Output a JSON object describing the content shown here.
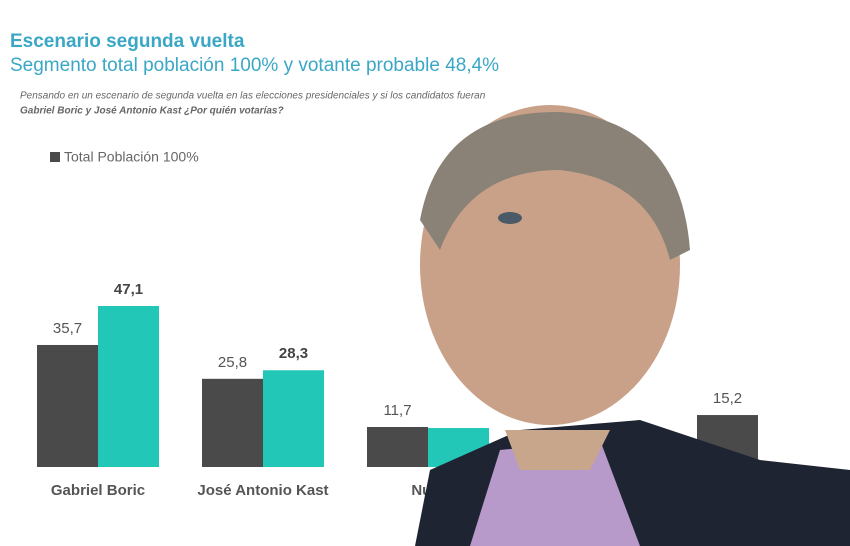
{
  "chart_data": {
    "type": "bar",
    "title": "Escenario segunda vuelta",
    "subtitle": "Segmento total población 100% y votante probable 48,4%",
    "note": [
      "Pensando en un escenario de segunda vuelta en las elecciones presidenciales y si los candidatos fueran",
      "Gabriel Boric y José Antonio Kast ¿Por quién votarías?"
    ],
    "categories": [
      "Gabriel Boric",
      "José Antonio Kast",
      "Nulo",
      null,
      null
    ],
    "series": [
      {
        "name": "Total Población 100%",
        "color": "#4a4a4a",
        "values": [
          35.7,
          25.8,
          11.7,
          null,
          15.2
        ],
        "value_labels": [
          "35,7",
          "25,8",
          "11,7",
          null,
          "15,2"
        ]
      },
      {
        "color": "#22c7b8",
        "values": [
          47.1,
          28.3,
          11.4,
          null,
          null
        ],
        "value_labels": [
          "47,1",
          "28,3",
          null,
          null,
          null
        ]
      }
    ],
    "ylim": [
      0,
      55
    ]
  }
}
